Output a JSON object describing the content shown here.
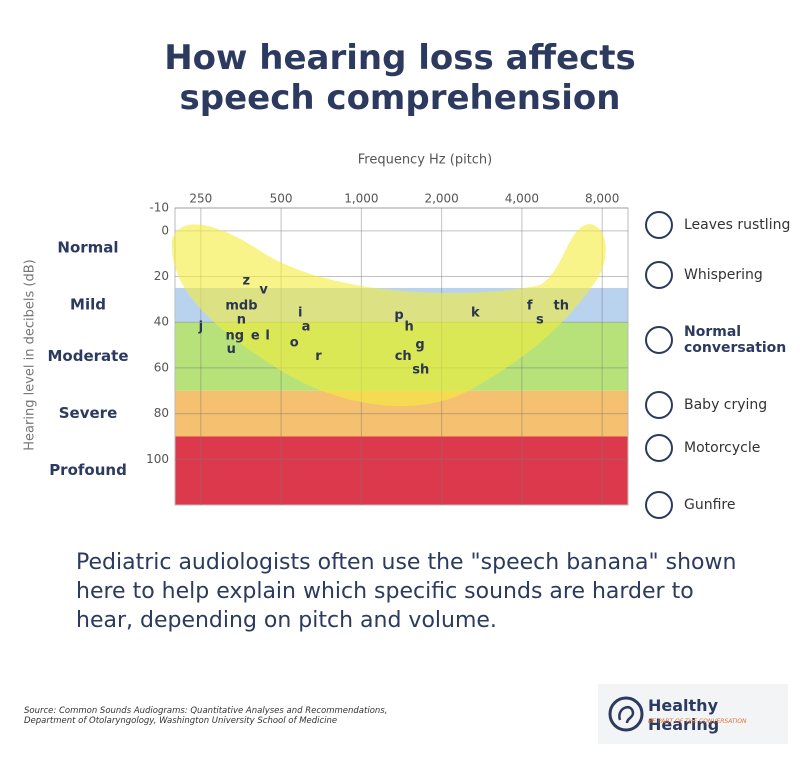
{
  "header": {
    "title": "How hearing loss affects speech comprehension"
  },
  "chart_data": {
    "type": "scatter",
    "x_label": "Frequency Hz (pitch)",
    "y_label": "Hearing level in decibels (dB)",
    "x_log": true,
    "xlim": [
      200,
      10000
    ],
    "xticks": [
      250,
      500,
      {
        "value": 1000,
        "label": "1,000"
      },
      {
        "value": 2000,
        "label": "2,000"
      },
      {
        "value": 4000,
        "label": "4,000"
      },
      {
        "value": 8000,
        "label": "8,000"
      }
    ],
    "ylim": [
      -10,
      120
    ],
    "y_inverted": true,
    "yticks": [
      -10,
      0,
      20,
      40,
      60,
      80,
      100
    ],
    "grid": true,
    "color": "#2b3550",
    "bands": [
      {
        "label": "Normal",
        "from": -10,
        "to": 25,
        "color": "#ffffff"
      },
      {
        "label": "Mild",
        "from": 25,
        "to": 40,
        "color": "#b9d3ef"
      },
      {
        "label": "Moderate",
        "from": 40,
        "to": 70,
        "color": "#b7e27a"
      },
      {
        "label": "Severe",
        "from": 70,
        "to": 90,
        "color": "#f5c070"
      },
      {
        "label": "Profound",
        "from": 90,
        "to": 120,
        "color": "#dc3a4c"
      }
    ],
    "points": {
      "labels": [
        "z",
        "v",
        "mdb",
        "n",
        "j",
        "ng",
        "e",
        "l",
        "u",
        "i",
        "a",
        "o",
        "r",
        "p",
        "h",
        "g",
        "ch",
        "sh",
        "k",
        "f",
        "s",
        "th"
      ],
      "x": [
        370,
        430,
        355,
        355,
        250,
        335,
        400,
        445,
        325,
        590,
        620,
        560,
        690,
        1385,
        1510,
        1660,
        1435,
        1670,
        2675,
        4280,
        4670,
        5620
      ],
      "y": [
        22,
        26,
        33,
        39,
        42,
        46,
        46,
        46,
        52,
        36,
        42,
        49,
        55,
        37,
        42,
        50,
        55,
        61,
        36,
        33,
        39,
        33
      ]
    }
  },
  "sounds": [
    "Leaves rustling",
    "Whispering",
    "Normal conversation",
    "Baby crying",
    "Motorcycle",
    "Gunfire"
  ],
  "body": {
    "text": "Pediatric audiologists often use the \"speech banana\" shown here to help explain which specific sounds are harder to hear, depending on pitch and volume."
  },
  "source": "Source: Common Sounds Audiograms: Quantitative Analyses and Recommendations, Department of Otolaryngology, Washington University School of Medicine",
  "logo": {
    "name": "Healthy Hearing",
    "tagline": "BE PART OF THE CONVERSATION"
  }
}
